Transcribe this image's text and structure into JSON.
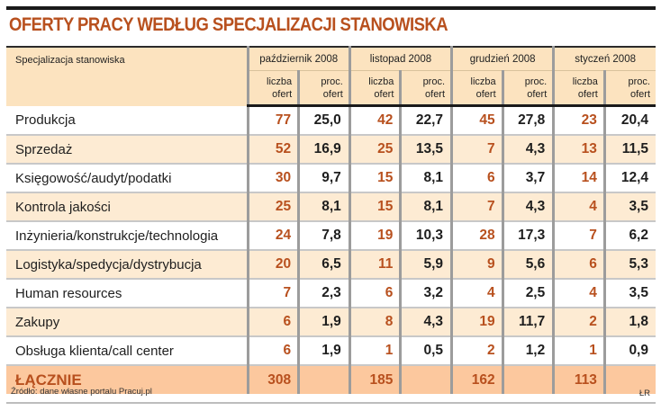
{
  "title": "OFERTY PRACY WEDŁUG SPECJALIZACJI STANOWISKA",
  "header": {
    "spec_label": "Specjalizacja stanowiska",
    "months": [
      "październik 2008",
      "listopad 2008",
      "grudzień 2008",
      "styczeń 2008"
    ],
    "sub_count": "liczba ofert",
    "sub_count_l1": "liczba",
    "sub_count_l2": "ofert",
    "sub_pct_l1": "proc.",
    "sub_pct_l2": "ofert"
  },
  "rows": [
    {
      "name": "Produkcja",
      "values": [
        "77",
        "25,0",
        "42",
        "22,7",
        "45",
        "27,8",
        "23",
        "20,4"
      ]
    },
    {
      "name": "Sprzedaż",
      "values": [
        "52",
        "16,9",
        "25",
        "13,5",
        "7",
        "4,3",
        "13",
        "11,5"
      ]
    },
    {
      "name": "Księgowość/audyt/podatki",
      "values": [
        "30",
        "9,7",
        "15",
        "8,1",
        "6",
        "3,7",
        "14",
        "12,4"
      ]
    },
    {
      "name": "Kontrola jakości",
      "values": [
        "25",
        "8,1",
        "15",
        "8,1",
        "7",
        "4,3",
        "4",
        "3,5"
      ]
    },
    {
      "name": "Inżynieria/konstrukcje/technologia",
      "values": [
        "24",
        "7,8",
        "19",
        "10,3",
        "28",
        "17,3",
        "7",
        "6,2"
      ]
    },
    {
      "name": "Logistyka/spedycja/dystrybucja",
      "values": [
        "20",
        "6,5",
        "11",
        "5,9",
        "9",
        "5,6",
        "6",
        "5,3"
      ]
    },
    {
      "name": "Human resources",
      "values": [
        "7",
        "2,3",
        "6",
        "3,2",
        "4",
        "2,5",
        "4",
        "3,5"
      ]
    },
    {
      "name": "Zakupy",
      "values": [
        "6",
        "1,9",
        "8",
        "4,3",
        "19",
        "11,7",
        "2",
        "1,8"
      ]
    },
    {
      "name": "Obsługa klienta/call center",
      "values": [
        "6",
        "1,9",
        "1",
        "0,5",
        "2",
        "1,2",
        "1",
        "0,9"
      ]
    }
  ],
  "total": {
    "label": "ŁĄCZNIE",
    "values": [
      "308",
      "",
      "185",
      "",
      "162",
      "",
      "113",
      ""
    ]
  },
  "footer": {
    "source": "Źródło: dane własne portalu Pracuj.pl",
    "author": "ŁR"
  },
  "colors": {
    "accent": "#b8501e",
    "header_bg": "#fce3bf",
    "alt_row_bg": "#fdebd3",
    "total_bg": "#fcc89e"
  },
  "chart_data": {
    "type": "table",
    "title": "OFERTY PRACY WEDŁUG SPECJALIZACJI STANOWISKA",
    "columns": [
      "Specjalizacja stanowiska",
      "październik 2008 liczba ofert",
      "październik 2008 proc. ofert",
      "listopad 2008 liczba ofert",
      "listopad 2008 proc. ofert",
      "grudzień 2008 liczba ofert",
      "grudzień 2008 proc. ofert",
      "styczeń 2008 liczba ofert",
      "styczeń 2008 proc. ofert"
    ],
    "rows": [
      [
        "Produkcja",
        77,
        25.0,
        42,
        22.7,
        45,
        27.8,
        23,
        20.4
      ],
      [
        "Sprzedaż",
        52,
        16.9,
        25,
        13.5,
        7,
        4.3,
        13,
        11.5
      ],
      [
        "Księgowość/audyt/podatki",
        30,
        9.7,
        15,
        8.1,
        6,
        3.7,
        14,
        12.4
      ],
      [
        "Kontrola jakości",
        25,
        8.1,
        15,
        8.1,
        7,
        4.3,
        4,
        3.5
      ],
      [
        "Inżynieria/konstrukcje/technologia",
        24,
        7.8,
        19,
        10.3,
        28,
        17.3,
        7,
        6.2
      ],
      [
        "Logistyka/spedycja/dystrybucja",
        20,
        6.5,
        11,
        5.9,
        9,
        5.6,
        6,
        5.3
      ],
      [
        "Human resources",
        7,
        2.3,
        6,
        3.2,
        4,
        2.5,
        4,
        3.5
      ],
      [
        "Zakupy",
        6,
        1.9,
        8,
        4.3,
        19,
        11.7,
        2,
        1.8
      ],
      [
        "Obsługa klienta/call center",
        6,
        1.9,
        1,
        0.5,
        2,
        1.2,
        1,
        0.9
      ],
      [
        "ŁĄCZNIE",
        308,
        null,
        185,
        null,
        162,
        null,
        113,
        null
      ]
    ],
    "source": "Źródło: dane własne portalu Pracuj.pl"
  }
}
